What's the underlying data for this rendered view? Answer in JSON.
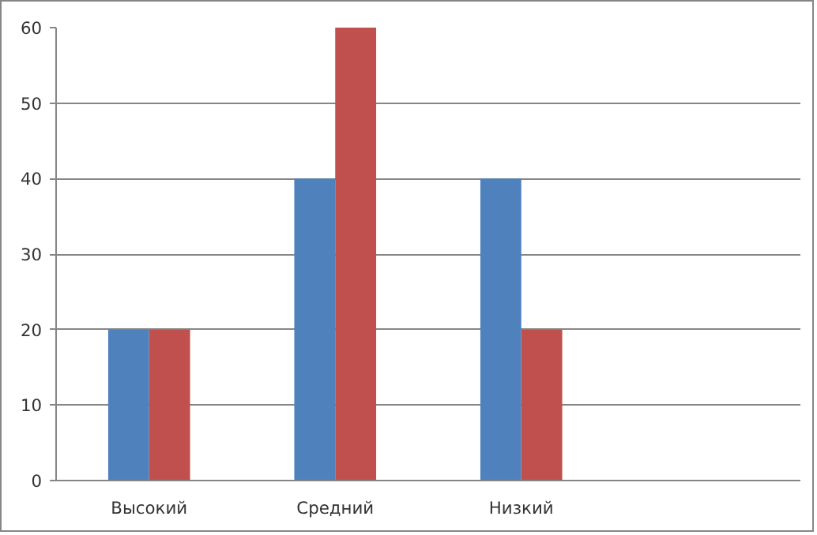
{
  "chart_data": {
    "type": "bar",
    "categories": [
      "Высокий",
      "Средний",
      "Низкий",
      null
    ],
    "series": [
      {
        "color": "#4f81bd",
        "values": [
          20,
          40,
          40,
          null
        ]
      },
      {
        "color": "#c0504d",
        "values": [
          20,
          60,
          20,
          null
        ]
      }
    ],
    "ylim": [
      0,
      60
    ],
    "yticks": [
      0,
      10,
      20,
      30,
      40,
      50,
      60
    ],
    "grid": "y"
  }
}
